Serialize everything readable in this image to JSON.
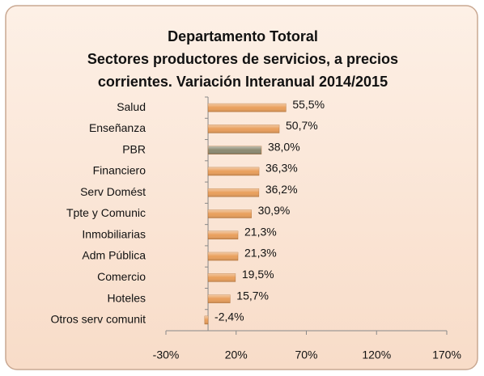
{
  "chart_data": {
    "type": "hbar",
    "title": [
      "Departamento Totoral",
      "Sectores productores de servicios, a precios",
      "corrientes. Variación Interanual 2014/2015"
    ],
    "categories": [
      "Salud",
      "Enseñanza",
      "PBR",
      "Financiero",
      "Serv Domést",
      "Tpte y Comunic",
      "Inmobiliarias",
      "Adm Pública",
      "Comercio",
      "Hoteles",
      "Otros serv comunit"
    ],
    "values": [
      55.5,
      50.7,
      38.0,
      36.3,
      36.2,
      30.9,
      21.3,
      21.3,
      19.5,
      15.7,
      -2.4
    ],
    "value_labels": [
      "55,5%",
      "50,7%",
      "38,0%",
      "36,3%",
      "36,2%",
      "30,9%",
      "21,3%",
      "21,3%",
      "19,5%",
      "15,7%",
      "-2,4%"
    ],
    "colors": [
      "#e99f5c",
      "#e99f5c",
      "#8c8a72",
      "#e99f5c",
      "#e99f5c",
      "#e99f5c",
      "#e99f5c",
      "#e99f5c",
      "#e99f5c",
      "#e99f5c",
      "#e99f5c"
    ],
    "xlim": [
      -30,
      170
    ],
    "xticks": [
      {
        "value": -30,
        "label": "-30%"
      },
      {
        "value": 20,
        "label": "20%"
      },
      {
        "value": 70,
        "label": "70%"
      },
      {
        "value": 120,
        "label": "120%"
      },
      {
        "value": 170,
        "label": "170%"
      }
    ],
    "grid": false
  }
}
